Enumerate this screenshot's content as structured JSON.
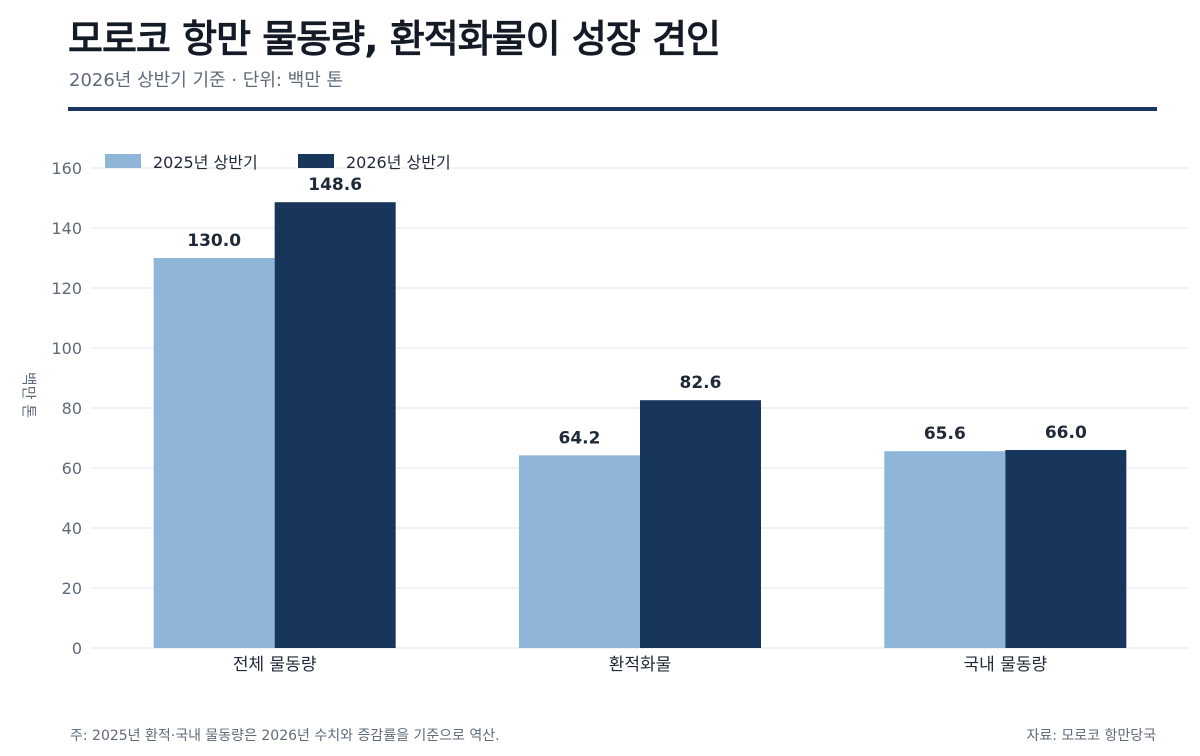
{
  "header": {
    "title": "모로코 항만 물동량, 환적화물이 성장 견인",
    "subtitle": "2026년 상반기 기준 · 단위: 백만 톤"
  },
  "footer": {
    "note": "주: 2025년 환적·국내 물동량은 2026년 수치와 증감률을 기준으로 역산.",
    "source": "자료: 모로코 항만당국"
  },
  "colors": {
    "series_2025": "#8fb5d8",
    "series_2026": "#18365b",
    "grid": "#e3e5e8",
    "axis_text": "#5f6b78",
    "label_text": "#1f2937"
  },
  "chart_data": {
    "type": "bar",
    "categories": [
      "전체 물동량",
      "환적화물",
      "국내 물동량"
    ],
    "series": [
      {
        "name": "2025년 상반기",
        "values": [
          130.0,
          64.2,
          65.6
        ]
      },
      {
        "name": "2026년 상반기",
        "values": [
          148.6,
          82.6,
          66.0
        ]
      }
    ],
    "ylabel": "백만 톤",
    "ylim": [
      0,
      160
    ],
    "yticks": [
      0,
      20,
      40,
      60,
      80,
      100,
      120,
      140,
      160
    ],
    "grid": true,
    "legend_position": "top-left"
  }
}
